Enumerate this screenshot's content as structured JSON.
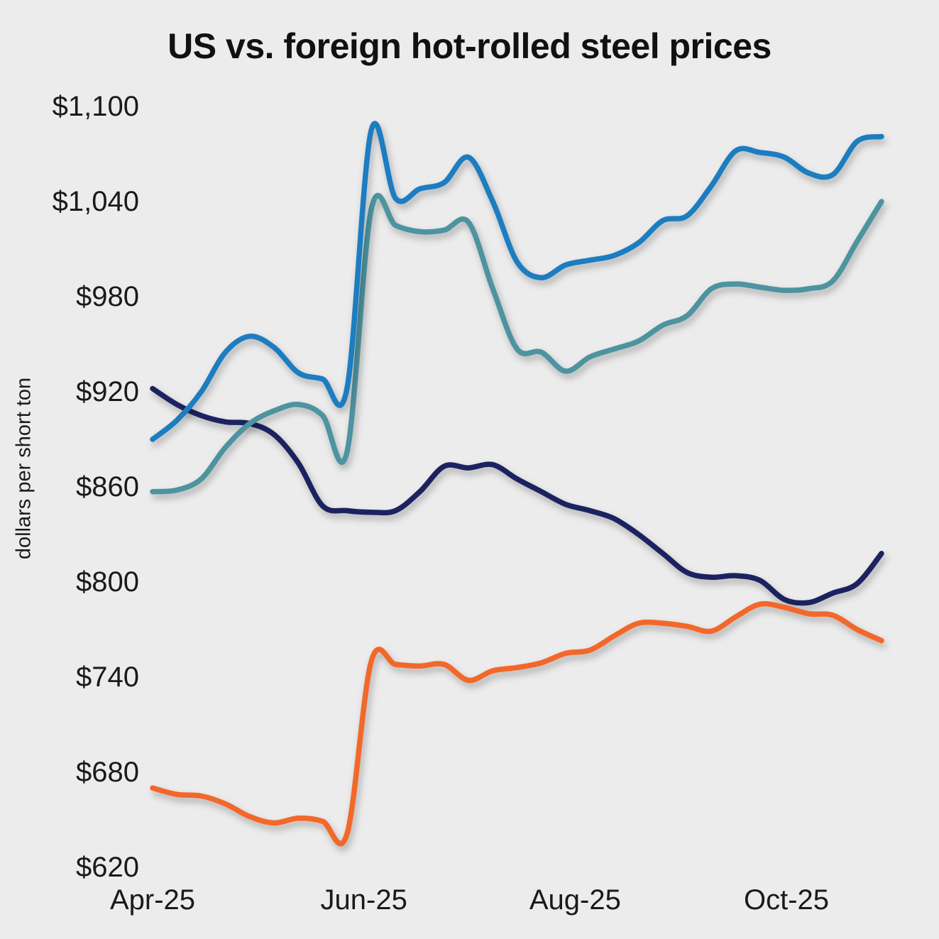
{
  "chart_data": {
    "type": "line",
    "title": "US vs. foreign hot-rolled steel prices",
    "ylabel": "dollars per short ton",
    "background": "#ececec",
    "ylim": [
      620,
      1100
    ],
    "grid": false,
    "legend": "none",
    "y_ticks": [
      {
        "label": "$620",
        "value": 620
      },
      {
        "label": "$680",
        "value": 680
      },
      {
        "label": "$740",
        "value": 740
      },
      {
        "label": "$800",
        "value": 800
      },
      {
        "label": "$860",
        "value": 860
      },
      {
        "label": "$920",
        "value": 920
      },
      {
        "label": "$980",
        "value": 980
      },
      {
        "label": "$1,040",
        "value": 1040
      },
      {
        "label": "$1,100",
        "value": 1100
      }
    ],
    "x_ticks": [
      {
        "label": "Apr-25",
        "x": 0
      },
      {
        "label": "Jun-25",
        "x": 2
      },
      {
        "label": "Aug-25",
        "x": 4
      },
      {
        "label": "Oct-25",
        "x": 6
      }
    ],
    "x_unit": "months since Apr-25",
    "x": [
      0,
      0.23,
      0.46,
      0.69,
      0.92,
      1.15,
      1.38,
      1.61,
      1.84,
      2.07,
      2.3,
      2.53,
      2.76,
      2.99,
      3.22,
      3.45,
      3.68,
      3.91,
      4.14,
      4.37,
      4.6,
      4.83,
      5.06,
      5.29,
      5.52,
      5.75,
      5.98,
      6.21,
      6.44,
      6.67,
      6.9
    ],
    "series": [
      {
        "name": "navy",
        "color": "#1b2460",
        "values": [
          922,
          912,
          905,
          901,
          900,
          893,
          875,
          848,
          845,
          844,
          845,
          857,
          873,
          872,
          874,
          865,
          857,
          849,
          845,
          840,
          830,
          818,
          806,
          803,
          804,
          801,
          789,
          787,
          793,
          799,
          818
        ]
      },
      {
        "name": "teal",
        "color": "#4e93a0",
        "values": [
          857,
          858,
          865,
          885,
          900,
          908,
          912,
          905,
          882,
          1035,
          1025,
          1021,
          1022,
          1027,
          985,
          947,
          945,
          933,
          942,
          947,
          952,
          962,
          968,
          985,
          988,
          986,
          984,
          985,
          990,
          1015,
          1040
        ]
      },
      {
        "name": "blue",
        "color": "#1a7dc0",
        "values": [
          890,
          902,
          920,
          945,
          955,
          948,
          932,
          928,
          922,
          1085,
          1042,
          1048,
          1052,
          1068,
          1040,
          1002,
          992,
          1000,
          1003,
          1006,
          1014,
          1028,
          1031,
          1050,
          1072,
          1071,
          1068,
          1058,
          1057,
          1078,
          1081
        ]
      },
      {
        "name": "orange",
        "color": "#f2682a",
        "values": [
          670,
          666,
          665,
          660,
          652,
          648,
          651,
          649,
          641,
          750,
          748,
          747,
          748,
          738,
          744,
          746,
          749,
          755,
          757,
          766,
          774,
          774,
          772,
          769,
          778,
          786,
          784,
          780,
          779,
          770,
          763
        ]
      }
    ]
  }
}
